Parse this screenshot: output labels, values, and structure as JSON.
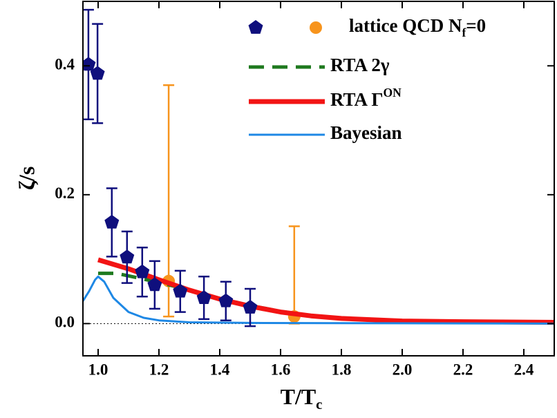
{
  "chart_data": {
    "type": "scatter",
    "xlabel": [
      "T/T",
      {
        "sub": "c"
      }
    ],
    "ylabel": "ζ/s",
    "xlim": [
      0.95,
      2.5
    ],
    "ylim": [
      -0.05,
      0.5
    ],
    "xticks": [
      {
        "value": 1.0,
        "label": "1.0"
      },
      1.2,
      1.4,
      1.6,
      1.8,
      {
        "value": 2.0,
        "label": "2.0"
      },
      2.2,
      2.4
    ],
    "yticks": [
      {
        "value": 0.0,
        "label": "0.0"
      },
      0.2,
      0.4
    ],
    "series": [
      {
        "type": "scatter",
        "name": [
          "lattice QCD N",
          {
            "sub": "f"
          },
          "=0"
        ],
        "color": "#0f0f7d",
        "marker": "pentagon",
        "x": [
          0.968,
          0.998,
          1.045,
          1.095,
          1.145,
          1.186,
          1.27,
          1.348,
          1.42,
          1.5
        ],
        "y": [
          0.402,
          0.388,
          0.157,
          0.103,
          0.08,
          0.06,
          0.05,
          0.04,
          0.035,
          0.025
        ],
        "yerr": [
          0.085,
          0.077,
          0.053,
          0.04,
          0.038,
          0.037,
          0.032,
          0.033,
          0.03,
          0.029
        ]
      },
      {
        "type": "scatter",
        "color": "#f7941d",
        "marker": "circle",
        "x": [
          1.232,
          1.645
        ],
        "y": [
          0.066,
          0.011
        ],
        "yerr_minus": [
          0.055,
          0.011
        ],
        "yerr_plus": [
          0.304,
          0.14
        ]
      },
      {
        "type": "line",
        "name": "RTA 2γ",
        "color": "#1f7a1f",
        "dashed": true,
        "x": [
          1.0,
          1.05,
          1.07,
          1.1,
          1.2,
          1.3,
          1.4,
          1.5,
          1.6,
          1.7,
          1.8,
          2.0,
          2.2,
          2.5
        ],
        "y": [
          0.078,
          0.078,
          0.077,
          0.074,
          0.064,
          0.052,
          0.039,
          0.028,
          0.019,
          0.012,
          0.008,
          0.004,
          0.003,
          0.002
        ]
      },
      {
        "type": "line",
        "name": [
          "RTA Γ",
          {
            "sup": "ON"
          }
        ],
        "color": "#f21414",
        "x": [
          1.0,
          1.1,
          1.2,
          1.3,
          1.4,
          1.5,
          1.6,
          1.7,
          1.8,
          2.0,
          2.2,
          2.5
        ],
        "y": [
          0.099,
          0.085,
          0.068,
          0.052,
          0.038,
          0.027,
          0.018,
          0.012,
          0.008,
          0.004,
          0.003,
          0.002
        ]
      },
      {
        "type": "line",
        "name": "Bayesian",
        "color": "#1e88e5",
        "x": [
          0.95,
          0.97,
          0.99,
          1.0,
          1.02,
          1.05,
          1.1,
          1.15,
          1.2,
          1.3,
          1.5,
          2.0,
          2.5
        ],
        "y": [
          0.035,
          0.05,
          0.068,
          0.073,
          0.065,
          0.04,
          0.018,
          0.009,
          0.005,
          0.002,
          0.001,
          0.0005,
          0.0
        ]
      }
    ]
  }
}
